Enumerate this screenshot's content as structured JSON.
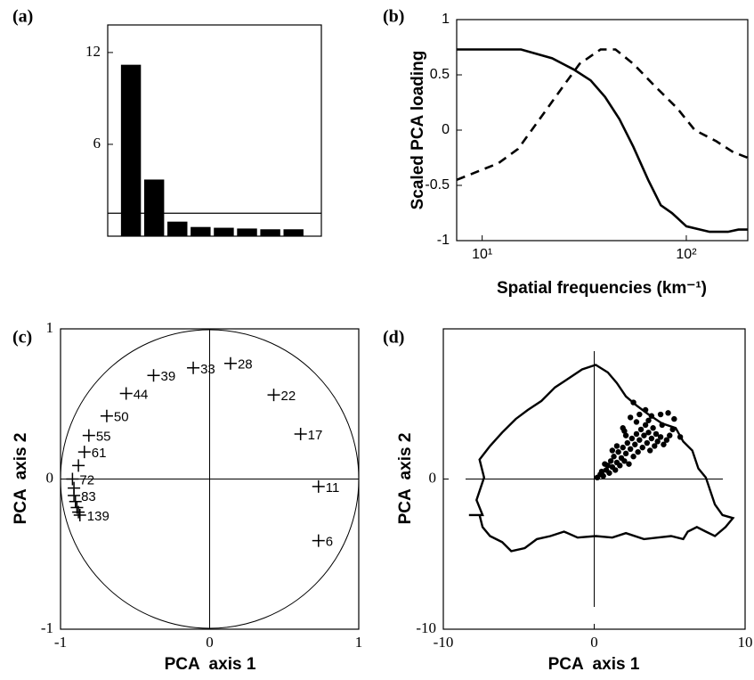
{
  "chart_data": [
    {
      "type": "bar",
      "panel_label": "(a)",
      "categories": [
        null,
        null,
        null,
        null,
        null,
        null,
        null,
        null
      ],
      "values": [
        11.2,
        3.7,
        0.95,
        0.6,
        0.55,
        0.5,
        0.45,
        0.45
      ],
      "color": "#000000",
      "ylim": [
        0,
        13.8
      ],
      "yticks": [
        6,
        12
      ],
      "reference_line": 1.5
    },
    {
      "type": "line",
      "panel_label": "(b)",
      "ylabel": "Scaled PCA loading",
      "xlabel": "Spatial frequencies (km⁻¹)",
      "xlog": true,
      "xlim": [
        7.5,
        200
      ],
      "ylim": [
        -1,
        1
      ],
      "xticks": [
        {
          "value": 10,
          "label": "10¹"
        },
        {
          "value": 100,
          "label": "10²"
        }
      ],
      "yticks": [
        -1,
        -0.5,
        0,
        0.5,
        1
      ],
      "series": [
        {
          "color": "#000000",
          "dash": false,
          "x": [
            7.5,
            15.5,
            22,
            28,
            34,
            40,
            47,
            55,
            65,
            75,
            85,
            100,
            130,
            160,
            180,
            200
          ],
          "values": [
            0.73,
            0.73,
            0.65,
            0.55,
            0.45,
            0.3,
            0.1,
            -0.15,
            -0.45,
            -0.68,
            -0.75,
            -0.87,
            -0.92,
            -0.92,
            -0.9,
            -0.9
          ]
        },
        {
          "color": "#000000",
          "dash": true,
          "x": [
            7.5,
            12,
            15,
            20,
            25,
            30,
            38,
            45,
            55,
            70,
            90,
            110,
            140,
            170,
            200
          ],
          "values": [
            -0.45,
            -0.3,
            -0.17,
            0.15,
            0.4,
            0.6,
            0.73,
            0.73,
            0.6,
            0.4,
            0.2,
            0.0,
            -0.1,
            -0.2,
            -0.25
          ]
        }
      ]
    },
    {
      "type": "scatter",
      "panel_label": "(c)",
      "xlabel": "PCA  axis 1",
      "ylabel": "PCA  axis 2",
      "xlim": [
        -1,
        1
      ],
      "ylim": [
        -1,
        1
      ],
      "xticks": [
        -1,
        0,
        1
      ],
      "yticks": [
        -1,
        0,
        1
      ],
      "unit_circle": true,
      "zero_lines": true,
      "series": [
        {
          "marker": "plus",
          "color": "#000000",
          "x": [
            -0.376,
            -0.11,
            0.14,
            0.43,
            0.61,
            -0.56,
            -0.69,
            -0.81,
            -0.84,
            -0.88,
            -0.92,
            -0.91,
            -0.91,
            -0.9,
            -0.89,
            -0.88,
            -0.87,
            0.73,
            0.73
          ],
          "values": [
            0.69,
            0.74,
            0.77,
            0.56,
            0.3,
            0.57,
            0.42,
            0.29,
            0.18,
            0.09,
            0.0,
            -0.06,
            -0.11,
            -0.15,
            -0.19,
            -0.22,
            -0.24,
            -0.05,
            -0.41
          ],
          "point_labels": [
            39,
            33,
            28,
            22,
            17,
            44,
            50,
            55,
            61,
            null,
            72,
            null,
            83,
            null,
            null,
            null,
            139,
            11,
            6
          ]
        }
      ]
    },
    {
      "type": "scatter",
      "panel_label": "(d)",
      "xlabel": "PCA  axis 1",
      "ylabel": "PCA  axis 2",
      "xlim": [
        -10,
        10
      ],
      "ylim": [
        -10,
        10
      ],
      "xticks": [
        -10,
        0,
        10
      ],
      "yticks": [
        -10,
        0
      ],
      "unit_circle": false,
      "zero_lines": true,
      "series": [
        {
          "kind": "outline",
          "closed": true,
          "color": "#000000",
          "x": [
            -8.3,
            -7.4,
            -7.8,
            -7.3,
            -7.6,
            -6.9,
            -6.1,
            -5.2,
            -4.4,
            -3.5,
            -2.6,
            -1.7,
            -0.8,
            0.1,
            0.9,
            1.5,
            2.1,
            2.8,
            3.6,
            4.5,
            5.4,
            5.9,
            6.5,
            6.9,
            7.4,
            7.7,
            8.0,
            8.5,
            9.2,
            8.7,
            8.0,
            7.4,
            6.8,
            6.2,
            5.9,
            5.1,
            4.2,
            3.3,
            2.1,
            1.2,
            0.1,
            -1.1,
            -2.0,
            -2.9,
            -3.8,
            -4.6,
            -5.5,
            -6.1,
            -6.9,
            -7.4,
            -7.6
          ],
          "values": [
            -2.4,
            -2.4,
            -1.4,
            0.1,
            1.3,
            2.2,
            3.1,
            4.0,
            4.6,
            5.2,
            6.1,
            6.7,
            7.3,
            7.6,
            7.1,
            6.4,
            5.5,
            4.9,
            4.3,
            3.7,
            3.4,
            2.5,
            1.9,
            0.7,
            0.1,
            -0.8,
            -1.7,
            -2.4,
            -2.6,
            -3.2,
            -3.8,
            -3.5,
            -3.2,
            -3.5,
            -4.0,
            -3.8,
            -3.9,
            -4.0,
            -3.6,
            -3.9,
            -3.8,
            -3.9,
            -3.5,
            -3.8,
            -4.0,
            -4.6,
            -4.8,
            -4.2,
            -3.8,
            -3.2,
            -2.4
          ]
        },
        {
          "marker": "dot",
          "color": "#000000",
          "x": [
            0.2,
            0.4,
            0.5,
            0.6,
            0.8,
            0.9,
            1.0,
            1.1,
            1.2,
            1.3,
            1.4,
            1.5,
            1.6,
            1.7,
            1.8,
            1.9,
            2.0,
            2.1,
            2.2,
            2.3,
            2.4,
            2.5,
            2.6,
            2.7,
            2.8,
            2.9,
            3.0,
            3.1,
            3.2,
            3.3,
            3.4,
            3.5,
            3.6,
            3.7,
            3.8,
            3.9,
            4.0,
            4.1,
            4.2,
            4.4,
            4.6,
            4.8,
            2.4,
            2.6,
            3.0,
            3.4,
            2.8,
            3.8,
            4.4,
            4.9,
            5.2,
            5.7,
            5.3,
            1.9,
            2.1,
            4.5,
            3.6,
            2.0,
            5.0,
            1.5,
            0.7,
            1.2
          ],
          "values": [
            0.1,
            0.3,
            0.5,
            0.2,
            0.6,
            0.9,
            0.4,
            1.2,
            0.8,
            1.5,
            0.6,
            1.1,
            1.8,
            0.9,
            1.4,
            2.1,
            1.2,
            1.7,
            2.4,
            1.0,
            2.0,
            2.7,
            1.5,
            2.3,
            3.0,
            1.8,
            2.6,
            3.3,
            2.1,
            2.9,
            3.6,
            2.4,
            3.1,
            1.9,
            2.7,
            3.4,
            2.2,
            3.0,
            2.5,
            2.8,
            2.3,
            2.6,
            4.1,
            5.1,
            4.3,
            4.6,
            3.8,
            4.2,
            4.3,
            4.4,
            3.3,
            2.8,
            4.0,
            3.4,
            2.9,
            3.6,
            3.9,
            3.2,
            2.9,
            2.2,
            1.0,
            1.9
          ]
        }
      ]
    }
  ]
}
